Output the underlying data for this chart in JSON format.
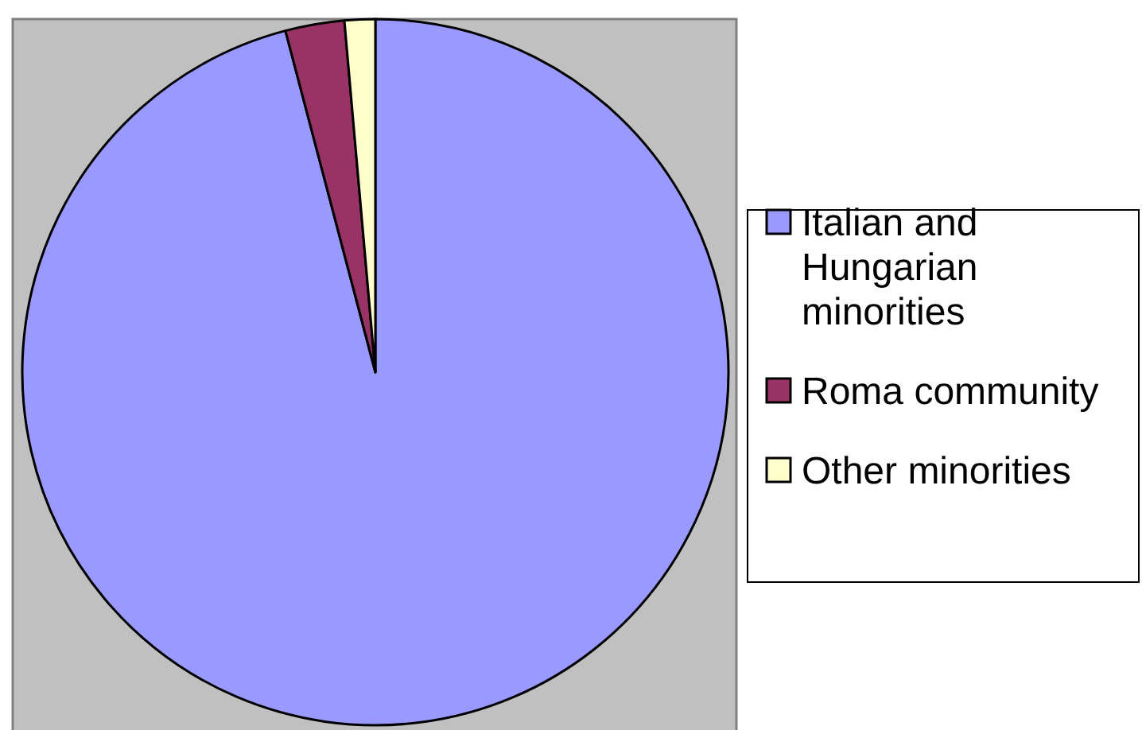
{
  "chart_data": {
    "type": "pie",
    "categories": [
      "Italian and Hungarian minorities",
      "Roma community",
      "Other minorities"
    ],
    "values": [
      95.9,
      2.7,
      1.4
    ],
    "colors": [
      "#9999ff",
      "#993366",
      "#ffffcc"
    ],
    "legend": "right"
  }
}
